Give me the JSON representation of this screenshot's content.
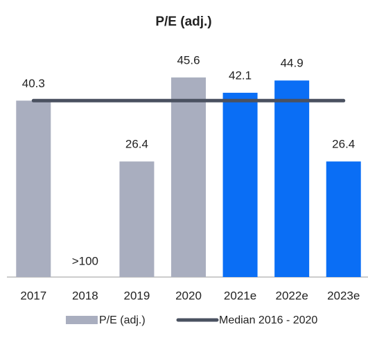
{
  "chart_data": {
    "type": "bar",
    "title": "P/E (adj.)",
    "categories": [
      "2017",
      "2018",
      "2019",
      "2020",
      "2021e",
      "2022e",
      "2023e"
    ],
    "series": [
      {
        "name": "P/E (adj.)",
        "color": "#a9aebf",
        "values": [
          40.3,
          null,
          26.4,
          45.6,
          42.1,
          44.9,
          26.4
        ],
        "value_labels": [
          "40.3",
          ">100",
          "26.4",
          "45.6",
          "42.1",
          "44.9",
          "26.4"
        ],
        "colors": [
          "#a9aebf",
          "#a9aebf",
          "#a9aebf",
          "#a9aebf",
          "#0a6ef5",
          "#0a6ef5",
          "#0a6ef5"
        ]
      }
    ],
    "median": {
      "name": "Median 2016 - 2020",
      "value": 40.3,
      "color": "#4a5160"
    },
    "ylim": [
      0,
      50
    ]
  }
}
